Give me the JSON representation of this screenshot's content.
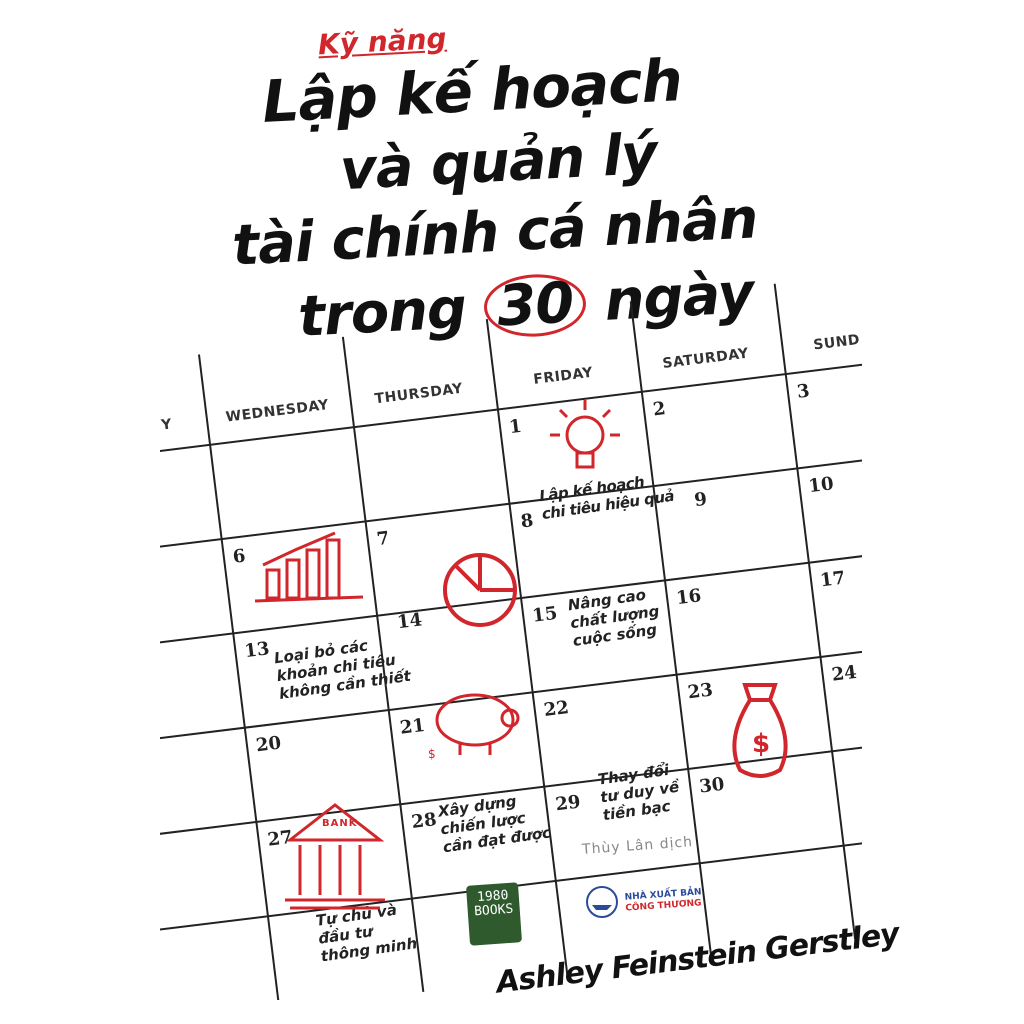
{
  "title": {
    "kicker": "Kỹ năng",
    "line1": "Lập kế hoạch",
    "line2": "và quản lý",
    "line3": "tài chính cá nhân",
    "line4a": "trong",
    "line4num": "30",
    "line4b": "ngày"
  },
  "calendar": {
    "days": [
      "Y",
      "WEDNESDAY",
      "THURSDAY",
      "FRIDAY",
      "SATURDAY",
      "SUND"
    ],
    "numbers": [
      "1",
      "2",
      "3",
      "6",
      "7",
      "8",
      "9",
      "10",
      "13",
      "14",
      "15",
      "16",
      "17",
      "20",
      "21",
      "22",
      "23",
      "24",
      "27",
      "28",
      "29",
      "30"
    ]
  },
  "notes": {
    "n8": "Lập kế hoạch\nchi tiêu hiệu quả",
    "n15": "Nâng cao\nchất lượng\ncuộc sống",
    "n13": "Loại bỏ các\nkhoản chi tiêu\nkhông cần thiết",
    "n28": "Xây dựng\nchiến lược\ncần đạt được",
    "n29": "Thay đổi\ntư duy về\ntiền bạc",
    "n27": "Tự chủ và\nđầu tư\nthông minh"
  },
  "bank_label": "BANK",
  "translator": "Thùy Lân dịch",
  "publishers": {
    "p1_line1": "1980",
    "p1_line2": "BOOKS",
    "p2_line1": "NHÀ XUẤT BẢN",
    "p2_line2": "CÔNG THƯƠNG"
  },
  "author": "Ashley Feinstein Gerstley",
  "colors": {
    "accent": "#d0262c",
    "ink": "#111111",
    "publisher_green": "#2f5a2e"
  }
}
